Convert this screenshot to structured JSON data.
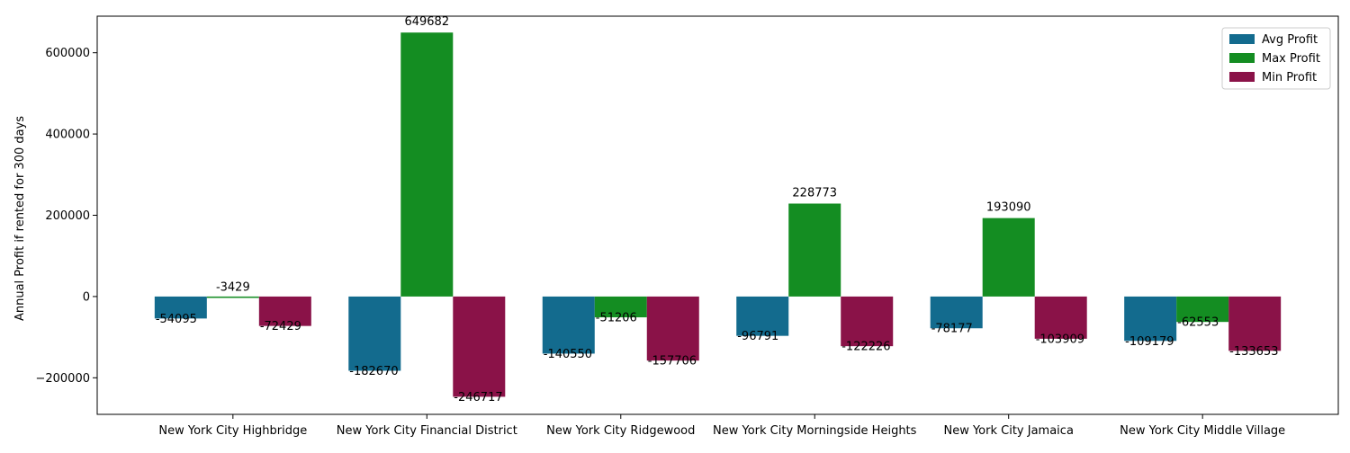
{
  "chart_data": {
    "type": "bar",
    "title": "",
    "xlabel": "",
    "ylabel": "Annual Profit if rented for 300 days",
    "ylim": [
      -290000,
      690000
    ],
    "yticks": [
      -200000,
      0,
      200000,
      400000,
      600000
    ],
    "ytick_labels": [
      "−200000",
      "0",
      "200000",
      "400000",
      "600000"
    ],
    "grid": false,
    "legend_position": "top-right",
    "categories": [
      "New York City Highbridge",
      "New York City Financial District",
      "New York City Ridgewood",
      "New York City Morningside Heights",
      "New York City Jamaica",
      "New York City Middle Village"
    ],
    "series": [
      {
        "name": "Avg Profit",
        "color": "#136b8e",
        "values": [
          -54095,
          -182670,
          -140550,
          -96791,
          -78177,
          -109179
        ]
      },
      {
        "name": "Max Profit",
        "color": "#148d22",
        "values": [
          -3429,
          649682,
          -51206,
          228773,
          193090,
          -62553
        ]
      },
      {
        "name": "Min Profit",
        "color": "#8a1248",
        "values": [
          -72429,
          -246717,
          -157706,
          -122226,
          -103909,
          -133653
        ]
      }
    ]
  }
}
